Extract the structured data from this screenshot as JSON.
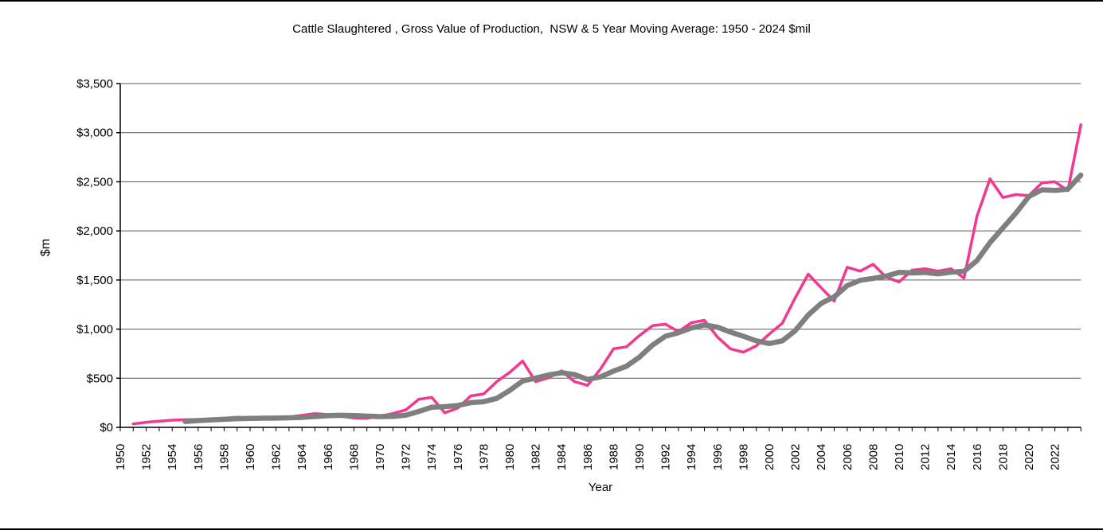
{
  "chart_data": {
    "type": "line",
    "title": "Cattle Slaughtered , Gross Value of Production,  NSW & 5 Year Moving Average: 1950 - 2024 $mil",
    "xlabel": "Year",
    "ylabel": "$m",
    "ylim": [
      0,
      3500
    ],
    "y_tick_step": 500,
    "y_tick_labels": [
      "$0",
      "$500",
      "$1,000",
      "$1,500",
      "$2,000",
      "$2,500",
      "$3,000",
      "$3,500"
    ],
    "x_year_range": [
      1950,
      2024
    ],
    "x_tick_label_years": [
      1950,
      1952,
      1954,
      1956,
      1958,
      1960,
      1962,
      1964,
      1966,
      1968,
      1970,
      1972,
      1974,
      1976,
      1978,
      1980,
      1982,
      1984,
      1986,
      1988,
      1990,
      1992,
      1994,
      1996,
      1998,
      2000,
      2002,
      2004,
      2006,
      2008,
      2010,
      2012,
      2014,
      2016,
      2018,
      2020,
      2022
    ],
    "grid": "horizontal",
    "legend": "none",
    "axis_color": "#000000",
    "gridline_color": "#595959",
    "series": [
      {
        "name": "NSW Gross Value of Production ($mil)",
        "color": "#F2388F",
        "line_width": 3.5,
        "start_year": 1951,
        "values": [
          35,
          52,
          63,
          73,
          78,
          80,
          85,
          92,
          103,
          95,
          88,
          93,
          105,
          122,
          140,
          130,
          112,
          96,
          92,
          115,
          140,
          178,
          286,
          305,
          148,
          195,
          320,
          340,
          465,
          560,
          675,
          465,
          505,
          575,
          465,
          428,
          595,
          800,
          820,
          935,
          1035,
          1050,
          975,
          1065,
          1090,
          920,
          800,
          765,
          830,
          950,
          1060,
          1320,
          1560,
          1420,
          1285,
          1630,
          1590,
          1660,
          1530,
          1480,
          1600,
          1615,
          1590,
          1615,
          1520,
          2150,
          2530,
          2340,
          2370,
          2360,
          2490,
          2500,
          2410,
          3080
        ]
      },
      {
        "name": "5 Year Moving Average",
        "color": "#7F7F7F",
        "line_width": 6.5,
        "start_year": 1955,
        "values": [
          60,
          69,
          76,
          82,
          88,
          91,
          93,
          94,
          97,
          101,
          110,
          118,
          122,
          120,
          114,
          109,
          111,
          124,
          162,
          205,
          211,
          222,
          251,
          262,
          294,
          376,
          472,
          501,
          534,
          556,
          537,
          488,
          514,
          573,
          622,
          716,
          837,
          928,
          963,
          1012,
          1043,
          1020,
          970,
          928,
          881,
          853,
          881,
          985,
          1144,
          1262,
          1329,
          1443,
          1497,
          1517,
          1539,
          1578,
          1572,
          1577,
          1563,
          1580,
          1588,
          1698,
          1881,
          2031,
          2182,
          2350,
          2418,
          2412,
          2426,
          2568
        ]
      }
    ]
  }
}
